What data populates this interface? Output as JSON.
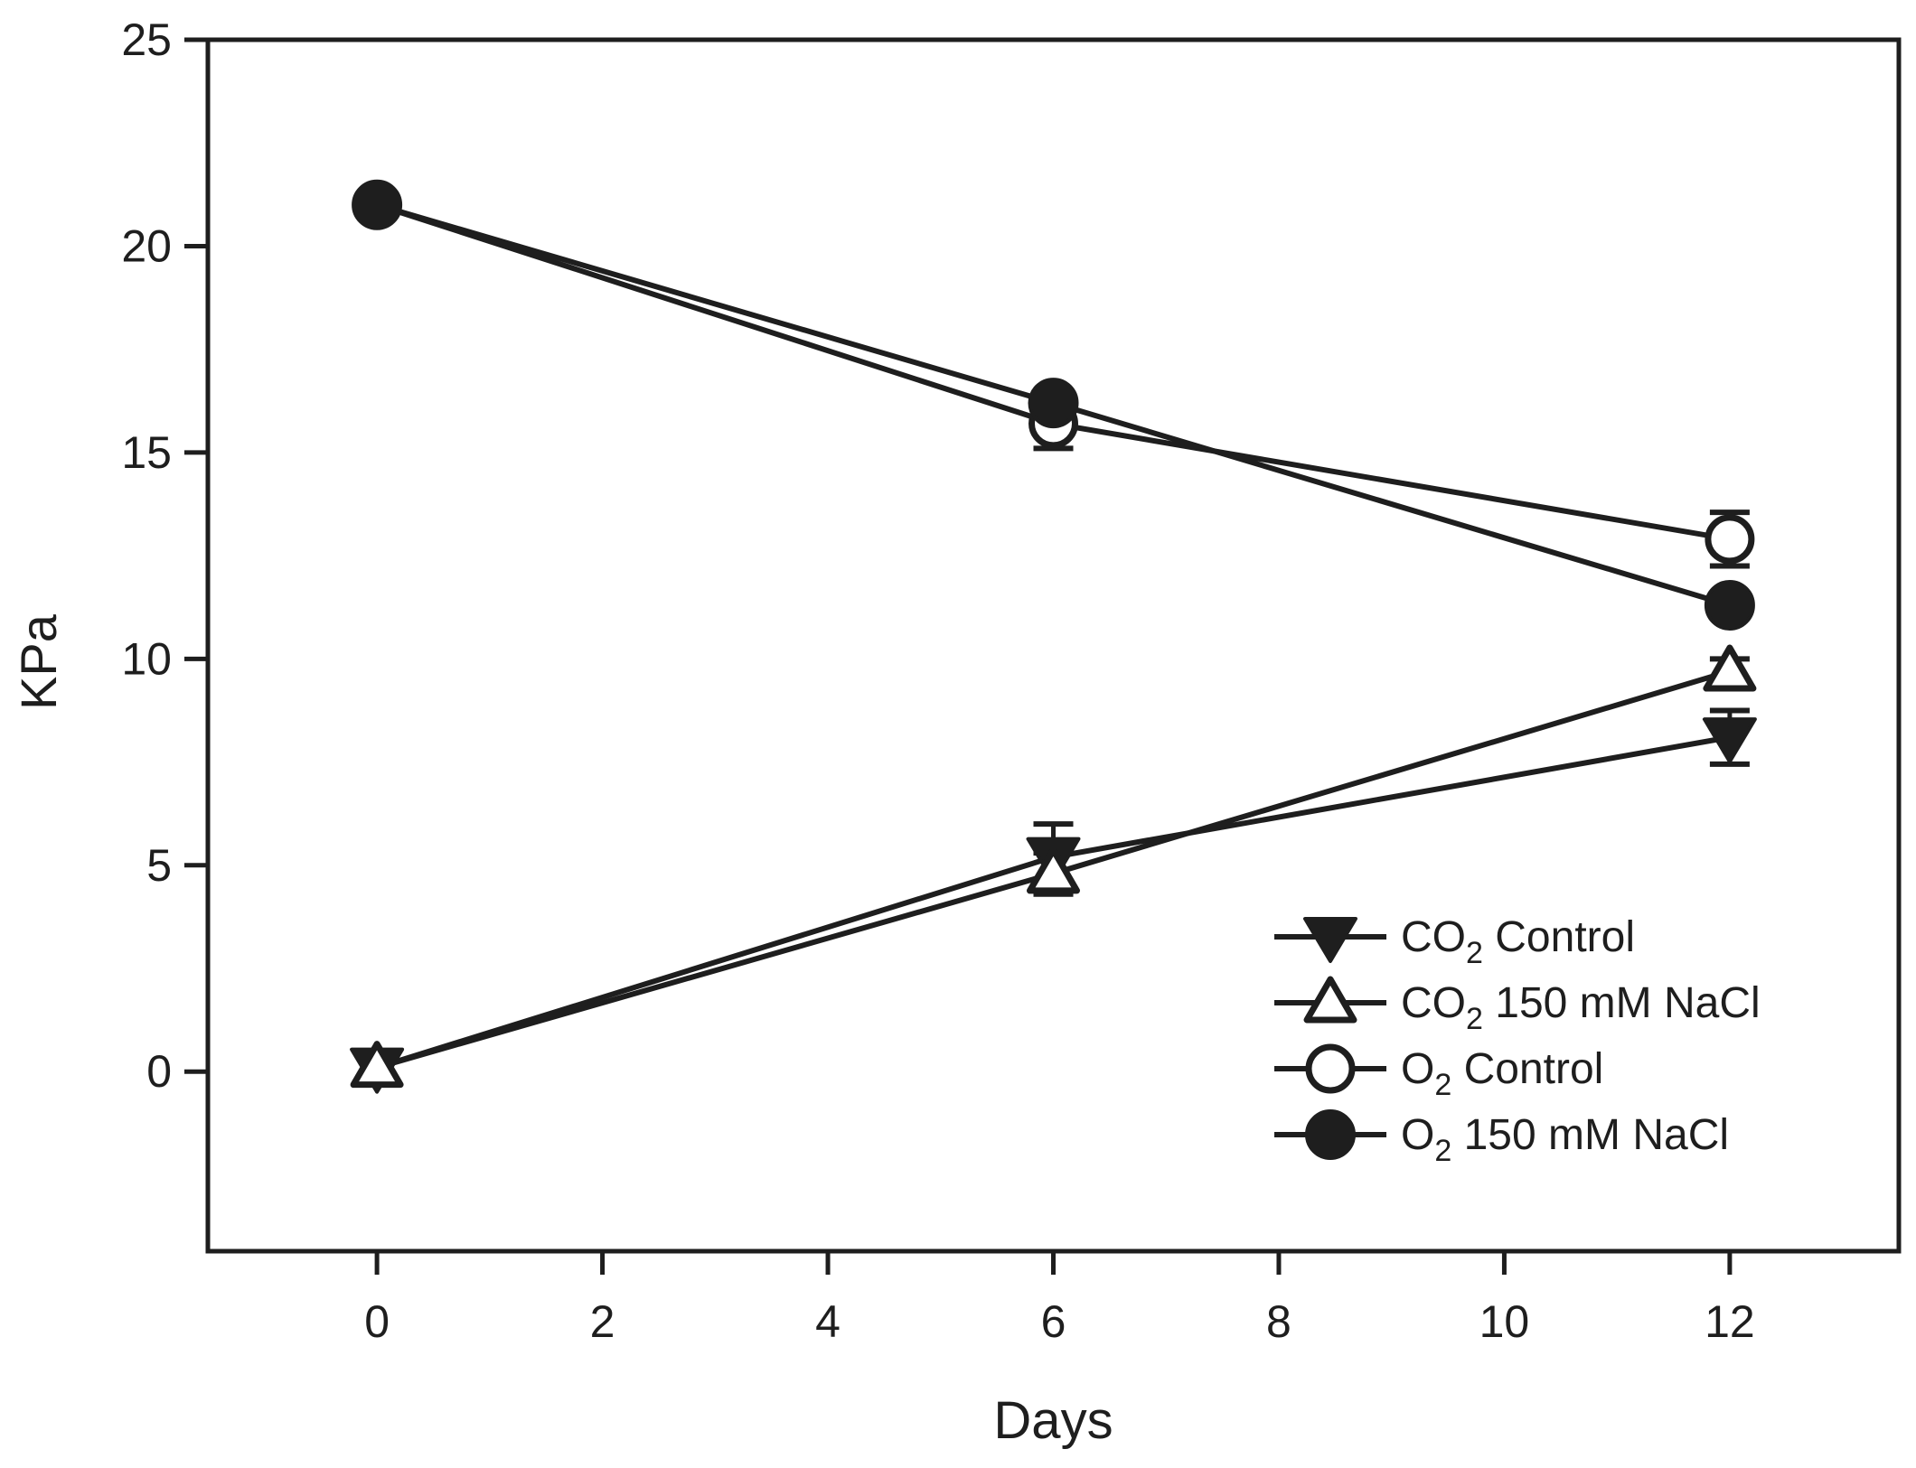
{
  "figure": {
    "background": "#ffffff",
    "ink": "#1e1e1e",
    "open_fill": "#ffffff"
  },
  "chart_data": {
    "type": "line",
    "title": "",
    "xlabel": "Days",
    "ylabel": "KPa",
    "x_ticks": [
      "0",
      "2",
      "4",
      "6",
      "8",
      "10",
      "12"
    ],
    "x_tick_values": [
      0,
      2,
      4,
      6,
      8,
      10,
      12
    ],
    "y_ticks": [
      "0",
      "5",
      "10",
      "15",
      "20",
      "25"
    ],
    "y_tick_values": [
      0,
      5,
      10,
      15,
      20,
      25
    ],
    "xlim": [
      -1.5,
      13.5
    ],
    "ylim": [
      -4.35,
      25.0
    ],
    "grid": false,
    "frame": true,
    "legend_position": "lower right",
    "x": [
      0,
      6,
      12
    ],
    "series": [
      {
        "name": "CO2 Control",
        "label_prefix": "CO",
        "label_sub": "2",
        "label_rest": " Control",
        "marker": "triangle-down-filled",
        "values": [
          0.1,
          5.2,
          8.1
        ],
        "errors": [
          0.2,
          0.8,
          0.65
        ]
      },
      {
        "name": "CO2 150 mM NaCl",
        "label_prefix": "CO",
        "label_sub": "2",
        "label_rest": " 150 mM NaCl",
        "marker": "triangle-up-open",
        "values": [
          0.1,
          4.8,
          9.7
        ],
        "errors": [
          0.2,
          0.5,
          0.3
        ]
      },
      {
        "name": "O2 Control",
        "label_prefix": "O",
        "label_sub": "2",
        "label_rest": " Control",
        "marker": "circle-open",
        "values": [
          21.0,
          15.7,
          12.9
        ],
        "errors": [
          0.3,
          0.6,
          0.65
        ]
      },
      {
        "name": "O2 150 mM NaCl",
        "label_prefix": "O",
        "label_sub": "2",
        "label_rest": " 150 mM NaCl",
        "marker": "circle-filled",
        "values": [
          21.0,
          16.2,
          11.3
        ],
        "errors": [
          0.3,
          0.2,
          0.2
        ]
      }
    ]
  }
}
